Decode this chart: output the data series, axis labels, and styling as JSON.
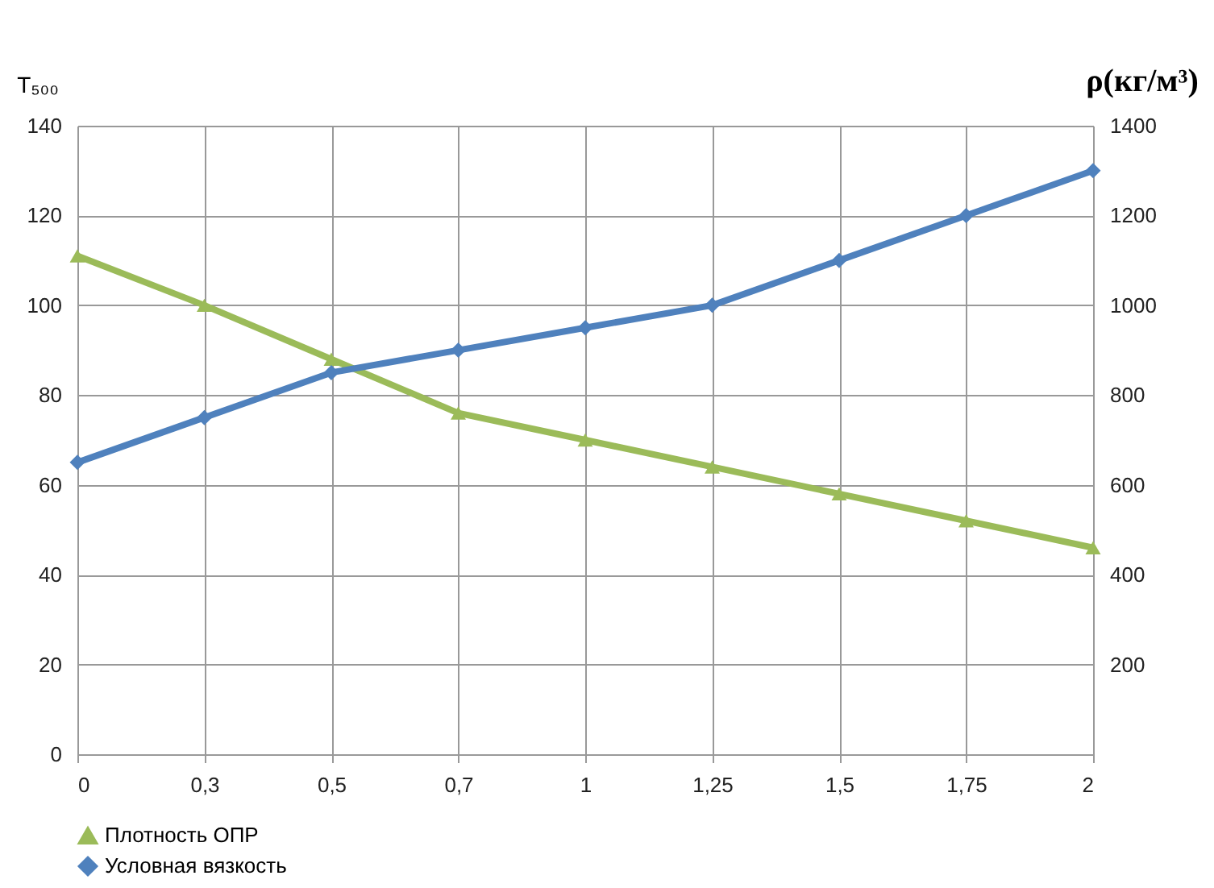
{
  "chart_data": {
    "type": "line",
    "ylabel": "T₅₀₀",
    "y2label": "ρ(кг/м³)",
    "categories": [
      "0",
      "0,3",
      "0,5",
      "0,7",
      "1",
      "1,25",
      "1,5",
      "1,75",
      "2"
    ],
    "series": [
      {
        "name": "Плотность ОПР",
        "color": "#9bbb59",
        "axis": "y2",
        "marker": "triangle",
        "values": [
          1110,
          1000,
          880,
          760,
          700,
          640,
          580,
          520,
          460
        ]
      },
      {
        "name": "Условная вязкость",
        "color": "#4f81bd",
        "marker": "diamond",
        "values": [
          65,
          75,
          85,
          90,
          95,
          100,
          110,
          120,
          130
        ]
      }
    ],
    "ylim": [
      0,
      140
    ],
    "yticks": [
      0,
      20,
      40,
      60,
      80,
      100,
      120,
      140
    ],
    "y2lim": [
      0,
      1400
    ],
    "y2ticks": [
      200,
      400,
      600,
      800,
      1000,
      1200,
      1400
    ],
    "grid": true,
    "legend": "bottom",
    "line_style": "solid"
  }
}
